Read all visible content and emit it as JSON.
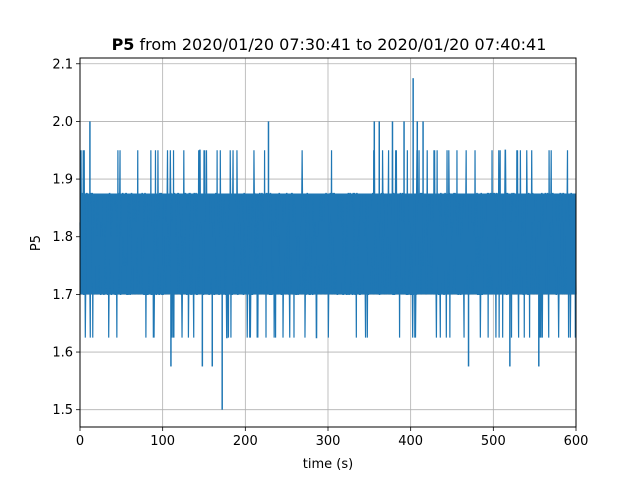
{
  "chart_data": {
    "type": "line",
    "title": {
      "bold": "P5",
      "rest": " from 2020/01/20 07:30:41 to 2020/01/20 07:40:41"
    },
    "xlabel": "time (s)",
    "ylabel": "P5",
    "xlim": [
      0,
      600
    ],
    "ylim": [
      1.47,
      2.11
    ],
    "xticks": [
      0,
      100,
      200,
      300,
      400,
      500,
      600
    ],
    "yticks": [
      1.5,
      1.6,
      1.7,
      1.8,
      1.9,
      2.0,
      2.1
    ],
    "grid": true,
    "series": [
      {
        "color": "#1f77b4",
        "x_range": [
          0,
          600
        ],
        "levels": [
          1.625,
          1.7,
          1.75,
          1.8,
          1.825,
          1.875,
          1.95
        ],
        "band": [
          1.7,
          1.875
        ],
        "spikes": [
          {
            "x": 12,
            "y": 2.0
          },
          {
            "x": 110,
            "y": 1.575
          },
          {
            "x": 148,
            "y": 1.575
          },
          {
            "x": 160,
            "y": 1.575
          },
          {
            "x": 172,
            "y": 1.5
          },
          {
            "x": 228,
            "y": 2.0
          },
          {
            "x": 356,
            "y": 2.0
          },
          {
            "x": 362,
            "y": 2.0
          },
          {
            "x": 378,
            "y": 2.0
          },
          {
            "x": 392,
            "y": 2.0
          },
          {
            "x": 403,
            "y": 2.075
          },
          {
            "x": 408,
            "y": 2.0
          },
          {
            "x": 415,
            "y": 2.0
          },
          {
            "x": 470,
            "y": 1.575
          },
          {
            "x": 520,
            "y": 1.575
          },
          {
            "x": 555,
            "y": 1.575
          }
        ]
      }
    ]
  }
}
